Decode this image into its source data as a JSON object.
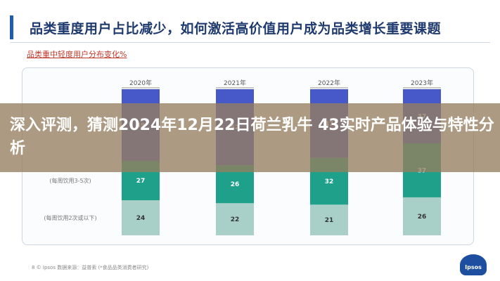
{
  "slide": {
    "title": "品类重度用户占比减少，如何激活高价值用户成为品类增长重要课题",
    "accent_color": "#1e5db0"
  },
  "overlay": {
    "headline": "深入评测，猜测2024年12月22日荷兰乳牛 43实时产品体验与特性分析"
  },
  "chart_data": {
    "type": "bar",
    "subtitle": "品类重中轻度用户分布变化%",
    "categories": [
      "2020年",
      "2021年",
      "2022年",
      "2023年"
    ],
    "stacked": true,
    "orientation": "vertical",
    "series": [
      {
        "name": "(每周饮用2次或以下)",
        "values": [
          24,
          22,
          21,
          26
        ],
        "color": "#a8cfc8"
      },
      {
        "name": "(每周饮用3-5次)",
        "values": [
          27,
          26,
          32,
          37
        ],
        "color": "#1fa08a"
      },
      {
        "name": "",
        "values": [
          49,
          52,
          47,
          37
        ],
        "color": "#4758c8"
      }
    ],
    "ylim": [
      0,
      100
    ],
    "grid": false,
    "legend": "row labels on left"
  },
  "footer": {
    "note": "8  © Ipsos   数据来源：益普索   (*食品品类消费者研究)"
  },
  "logo": {
    "text": "Ipsos",
    "color": "#1d4ea0"
  }
}
